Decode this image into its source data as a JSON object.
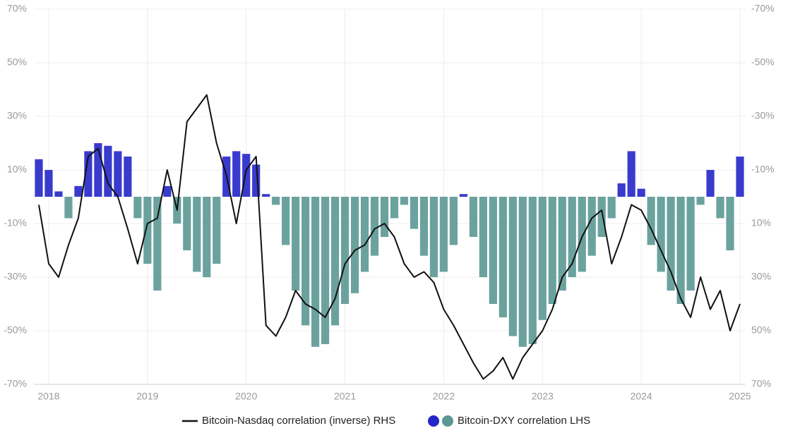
{
  "chart_data": {
    "type": "bar-line",
    "x": [
      2017.9,
      2018.0,
      2018.1,
      2018.2,
      2018.3,
      2018.4,
      2018.5,
      2018.6,
      2018.7,
      2018.8,
      2018.9,
      2019.0,
      2019.1,
      2019.2,
      2019.3,
      2019.4,
      2019.5,
      2019.6,
      2019.7,
      2019.8,
      2019.9,
      2020.0,
      2020.1,
      2020.2,
      2020.3,
      2020.4,
      2020.5,
      2020.6,
      2020.7,
      2020.8,
      2020.9,
      2021.0,
      2021.1,
      2021.2,
      2021.3,
      2021.4,
      2021.5,
      2021.6,
      2021.7,
      2021.8,
      2021.9,
      2022.0,
      2022.1,
      2022.2,
      2022.3,
      2022.4,
      2022.5,
      2022.6,
      2022.7,
      2022.8,
      2022.9,
      2023.0,
      2023.1,
      2023.2,
      2023.3,
      2023.4,
      2023.5,
      2023.6,
      2023.7,
      2023.8,
      2023.9,
      2024.0,
      2024.1,
      2024.2,
      2024.3,
      2024.4,
      2024.5,
      2024.6,
      2024.7,
      2024.8,
      2024.9,
      2025.0
    ],
    "series": [
      {
        "name": "Bitcoin-DXY correlation LHS",
        "kind": "bar",
        "color": "#5b9893",
        "positive_color": "#2426c8",
        "values": [
          14,
          10,
          2,
          -8,
          4,
          17,
          20,
          19,
          17,
          15,
          -8,
          -25,
          -35,
          4,
          -10,
          -20,
          -28,
          -30,
          -25,
          15,
          17,
          16,
          12,
          1,
          -3,
          -18,
          -35,
          -48,
          -56,
          -55,
          -48,
          -40,
          -36,
          -28,
          -22,
          -15,
          -8,
          -3,
          -12,
          -22,
          -30,
          -28,
          -18,
          1,
          -15,
          -30,
          -40,
          -45,
          -52,
          -56,
          -55,
          -46,
          -40,
          -35,
          -30,
          -28,
          -22,
          -15,
          -8,
          5,
          17,
          3,
          -18,
          -28,
          -35,
          -40,
          -35,
          -3,
          10,
          -8,
          -20,
          15
        ]
      },
      {
        "name": "Bitcoin-Nasdaq correlation (inverse) RHS",
        "kind": "line",
        "axis": "y2",
        "color": "#111111",
        "values": [
          3,
          25,
          30,
          18,
          8,
          -15,
          -18,
          -5,
          0,
          12,
          25,
          10,
          8,
          -10,
          5,
          -28,
          -33,
          -38,
          -20,
          -8,
          10,
          -10,
          -15,
          48,
          52,
          45,
          35,
          40,
          42,
          45,
          38,
          25,
          20,
          18,
          12,
          10,
          15,
          25,
          30,
          28,
          32,
          42,
          48,
          55,
          62,
          68,
          65,
          60,
          68,
          60,
          55,
          50,
          42,
          30,
          25,
          15,
          8,
          5,
          25,
          15,
          3,
          5,
          12,
          20,
          28,
          38,
          45,
          30,
          42,
          35,
          50,
          40
        ]
      }
    ],
    "xlim": [
      2017.85,
      2025.05
    ],
    "xticks": [
      2018,
      2019,
      2020,
      2021,
      2022,
      2023,
      2024,
      2025
    ],
    "ylim": [
      -70,
      70
    ],
    "yticks": [
      {
        "value": -70,
        "label": "-70%"
      },
      {
        "value": -50,
        "label": "-50%"
      },
      {
        "value": -30,
        "label": "-30%"
      },
      {
        "value": -10,
        "label": "-10%"
      },
      {
        "value": 10,
        "label": "10%"
      },
      {
        "value": 30,
        "label": "30%"
      },
      {
        "value": 50,
        "label": "50%"
      },
      {
        "value": 70,
        "label": "70%"
      }
    ],
    "y2lim": [
      70,
      -70
    ],
    "y2ticks": [
      {
        "value": -70,
        "label": "-70%"
      },
      {
        "value": -50,
        "label": "-50%"
      },
      {
        "value": -30,
        "label": "-30%"
      },
      {
        "value": -10,
        "label": "-10%"
      },
      {
        "value": 10,
        "label": "10%"
      },
      {
        "value": 30,
        "label": "30%"
      },
      {
        "value": 50,
        "label": "50%"
      },
      {
        "value": 70,
        "label": "70%"
      }
    ],
    "grid": true
  }
}
